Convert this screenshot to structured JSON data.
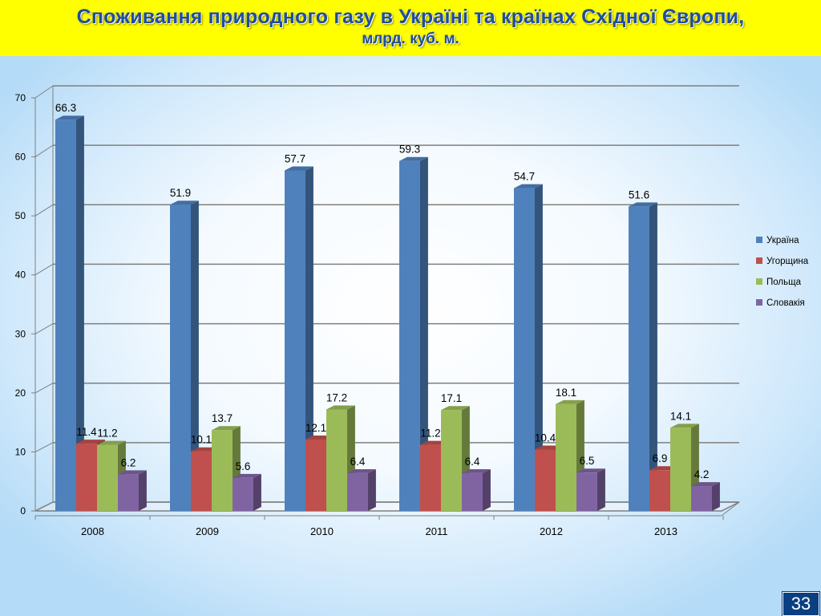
{
  "slide": {
    "title": "Споживання природного газу в Україні та країнах Східної Європи,",
    "subtitle": "млрд. куб. м.",
    "page_number": "33"
  },
  "chart_data": {
    "type": "bar",
    "title": "",
    "xlabel": "",
    "ylabel": "",
    "categories": [
      "2008",
      "2009",
      "2010",
      "2011",
      "2012",
      "2013"
    ],
    "y_ticks": [
      "0",
      "10",
      "20",
      "30",
      "40",
      "50",
      "60",
      "70"
    ],
    "ylim": [
      0,
      70
    ],
    "grid": true,
    "legend_position": "right",
    "series": [
      {
        "name": "Україна",
        "values": [
          66.3,
          51.9,
          57.7,
          59.3,
          54.7,
          51.6
        ],
        "color": "#4f81bd"
      },
      {
        "name": "Угорщина",
        "values": [
          11.4,
          10.1,
          12.1,
          11.2,
          10.4,
          6.9
        ],
        "color": "#c0504d"
      },
      {
        "name": "Польща",
        "values": [
          11.2,
          13.7,
          17.2,
          17.1,
          18.1,
          14.1
        ],
        "color": "#9bbb59"
      },
      {
        "name": "Словакія",
        "values": [
          6.2,
          5.6,
          6.4,
          6.4,
          6.5,
          4.2
        ],
        "color": "#8064a2"
      }
    ]
  }
}
